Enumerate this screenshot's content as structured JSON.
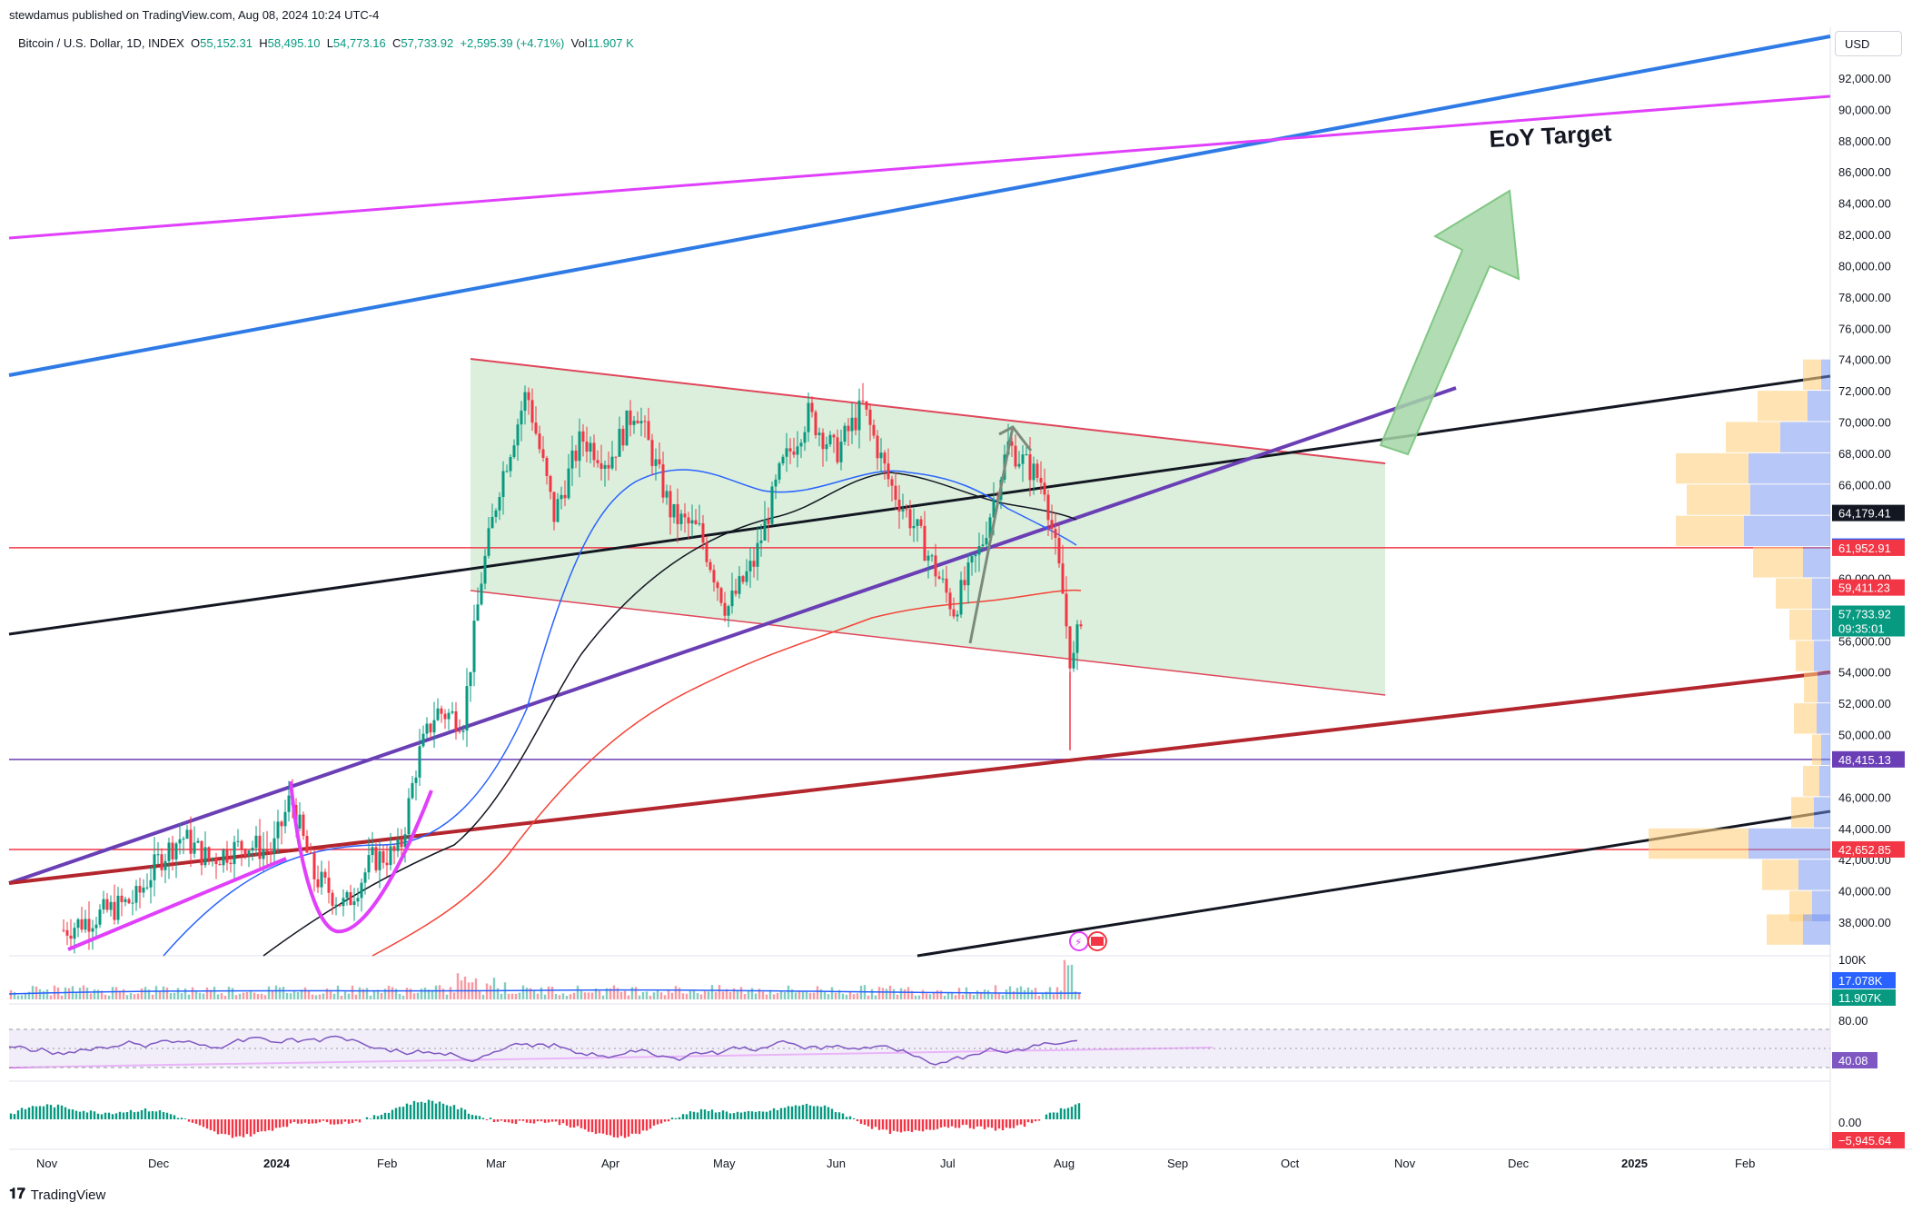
{
  "header": {
    "published": "stewdamus published on TradingView.com, Aug 08, 2024 10:24 UTC-4",
    "symbol": "Bitcoin / U.S. Dollar, 1D, INDEX",
    "open_label": "O",
    "open": "55,152.31",
    "high_label": "H",
    "high": "58,495.10",
    "low_label": "L",
    "low": "54,773.16",
    "close_label": "C",
    "close": "57,733.92",
    "change": "+2,595.39 (+4.71%)",
    "vol_label": "Vol",
    "vol": "11.907 K"
  },
  "currency_button": "USD",
  "annotation": "EoY Target",
  "logo_text": "TradingView",
  "colors": {
    "up": "#089981",
    "down": "#f23645",
    "channel_fill": "#c8e6c9",
    "channel_edge": "#e0455a",
    "blue_trend": "#2f7be6",
    "magenta": "#e040fb",
    "purple": "#6a3fb5",
    "dark_red": "#b3262d",
    "ma50": "#2962ff",
    "ma100": "#131722",
    "ma200": "#f44336"
  },
  "chart_data": {
    "type": "candlestick",
    "price_axis": {
      "ticks": [
        "92,000.00",
        "90,000.00",
        "88,000.00",
        "86,000.00",
        "84,000.00",
        "82,000.00",
        "80,000.00",
        "78,000.00",
        "76,000.00",
        "74,000.00",
        "72,000.00",
        "70,000.00",
        "68,000.00",
        "66,000.00",
        "60,000.00",
        "56,000.00",
        "54,000.00",
        "52,000.00",
        "50,000.00",
        "46,000.00",
        "44,000.00",
        "42,000.00",
        "40,000.00",
        "38,000.00"
      ],
      "tick_values": [
        92000,
        90000,
        88000,
        86000,
        84000,
        82000,
        80000,
        78000,
        76000,
        74000,
        72000,
        70000,
        68000,
        66000,
        60000,
        56000,
        54000,
        52000,
        50000,
        46000,
        44000,
        42000,
        40000,
        38000
      ],
      "range": [
        36000,
        94500
      ]
    },
    "time_axis": [
      "Nov",
      "Dec",
      "2024",
      "Feb",
      "Mar",
      "Apr",
      "May",
      "Jun",
      "Jul",
      "Aug",
      "Sep",
      "Oct",
      "Nov",
      "Dec",
      "2025",
      "Feb"
    ],
    "price_tags": [
      {
        "value": 64179.41,
        "label": "64,179.41",
        "color": "#131722"
      },
      {
        "value": 62031.33,
        "label": "62,031.33",
        "color": "#2962ff"
      },
      {
        "value": 61952.91,
        "label": "61,952.91",
        "color": "#f23645"
      },
      {
        "value": 59411.23,
        "label": "59,411.23",
        "color": "#f23645"
      },
      {
        "value": 57733.92,
        "label": "57,733.92",
        "color": "#089981",
        "sub": "09:35:01"
      },
      {
        "value": 48415.13,
        "label": "48,415.13",
        "color": "#6a3fb5"
      },
      {
        "value": 42652.85,
        "label": "42,652.85",
        "color": "#f23645"
      }
    ],
    "horizontal_lines": [
      {
        "value": 61952.91,
        "color": "#f23645"
      },
      {
        "value": 48415.13,
        "color": "#6a3fb5"
      },
      {
        "value": 42652.85,
        "color": "#f23645"
      }
    ],
    "volume": {
      "axis_label": "100K",
      "tags": [
        {
          "label": "17.078K",
          "color": "#2962ff"
        },
        {
          "label": "11.907K",
          "color": "#089981"
        }
      ]
    },
    "rsi": {
      "axis_label": "80.00",
      "value_tag": "40.08",
      "color": "#7e57c2"
    },
    "oscillator": {
      "axis_label": "0.00",
      "value_tag": "−5,945.64",
      "color": "#f23645"
    }
  }
}
